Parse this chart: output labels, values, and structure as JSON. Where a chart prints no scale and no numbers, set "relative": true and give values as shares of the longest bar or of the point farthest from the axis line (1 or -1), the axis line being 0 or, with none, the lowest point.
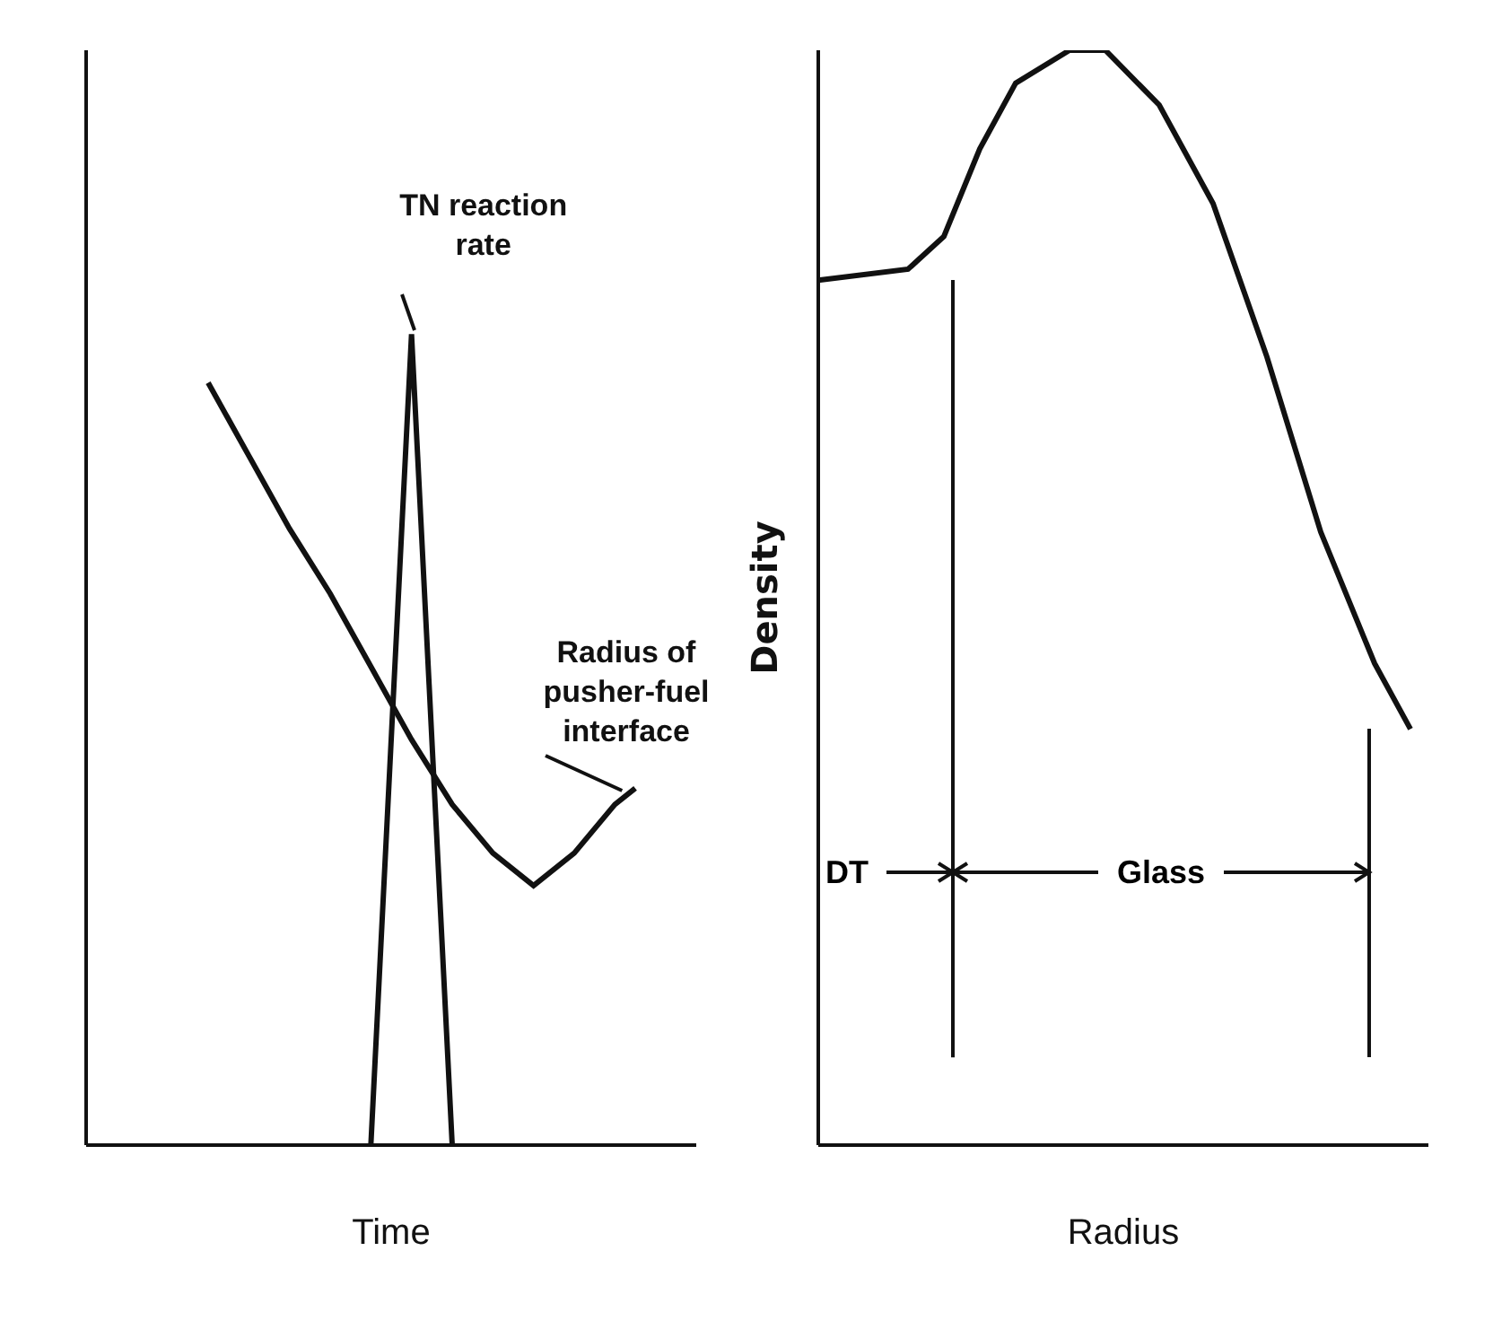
{
  "chart_data": [
    {
      "type": "line",
      "xlabel": "Time",
      "relative": true,
      "marker": "none",
      "categories": [
        null,
        null,
        null,
        null,
        null,
        null,
        null,
        null,
        null,
        null,
        null,
        null,
        null,
        null,
        null,
        null,
        null,
        null,
        null,
        null,
        null,
        null,
        null,
        null,
        null,
        null,
        null,
        null,
        null,
        null,
        null
      ],
      "series": [
        {
          "name": "TN reaction rate",
          "color": "#111111",
          "values": [
            null,
            null,
            null,
            null,
            null,
            null,
            null,
            null,
            null,
            null,
            null,
            null,
            null,
            null,
            0,
            null,
            1,
            null,
            0,
            null,
            null,
            null,
            null,
            null,
            null,
            null,
            null,
            null,
            null,
            null,
            null
          ]
        },
        {
          "name": "Radius of pusher-fuel interface",
          "color": "#111111",
          "values": [
            null,
            null,
            null,
            null,
            null,
            null,
            0.94,
            null,
            0.85,
            null,
            0.76,
            null,
            0.68,
            null,
            0.59,
            null,
            0.5,
            null,
            0.42,
            null,
            0.36,
            null,
            0.32,
            null,
            0.36,
            null,
            0.42,
            0.44,
            null,
            null,
            null
          ]
        }
      ]
    },
    {
      "type": "line",
      "xlabel": "Radius",
      "ylabel": "Density",
      "relative": true,
      "marker": "none",
      "categories": [
        null,
        null,
        null,
        null,
        null,
        null,
        null,
        null,
        null,
        null,
        null,
        null,
        null,
        null,
        null,
        null,
        null,
        null,
        null,
        null,
        null,
        null,
        null,
        null,
        null,
        null,
        null,
        null,
        null,
        null,
        null,
        null,
        null,
        null,
        null
      ],
      "series": [
        {
          "color": "#111111",
          "values": [
            0.79,
            null,
            null,
            null,
            null,
            0.8,
            null,
            0.83,
            null,
            0.91,
            null,
            0.97,
            null,
            null,
            1,
            null,
            1,
            null,
            null,
            0.95,
            null,
            null,
            0.86,
            null,
            null,
            0.72,
            null,
            null,
            0.56,
            null,
            null,
            0.44,
            null,
            0.38,
            null
          ]
        }
      ],
      "annotations": [
        "DT",
        "Glass"
      ]
    }
  ]
}
